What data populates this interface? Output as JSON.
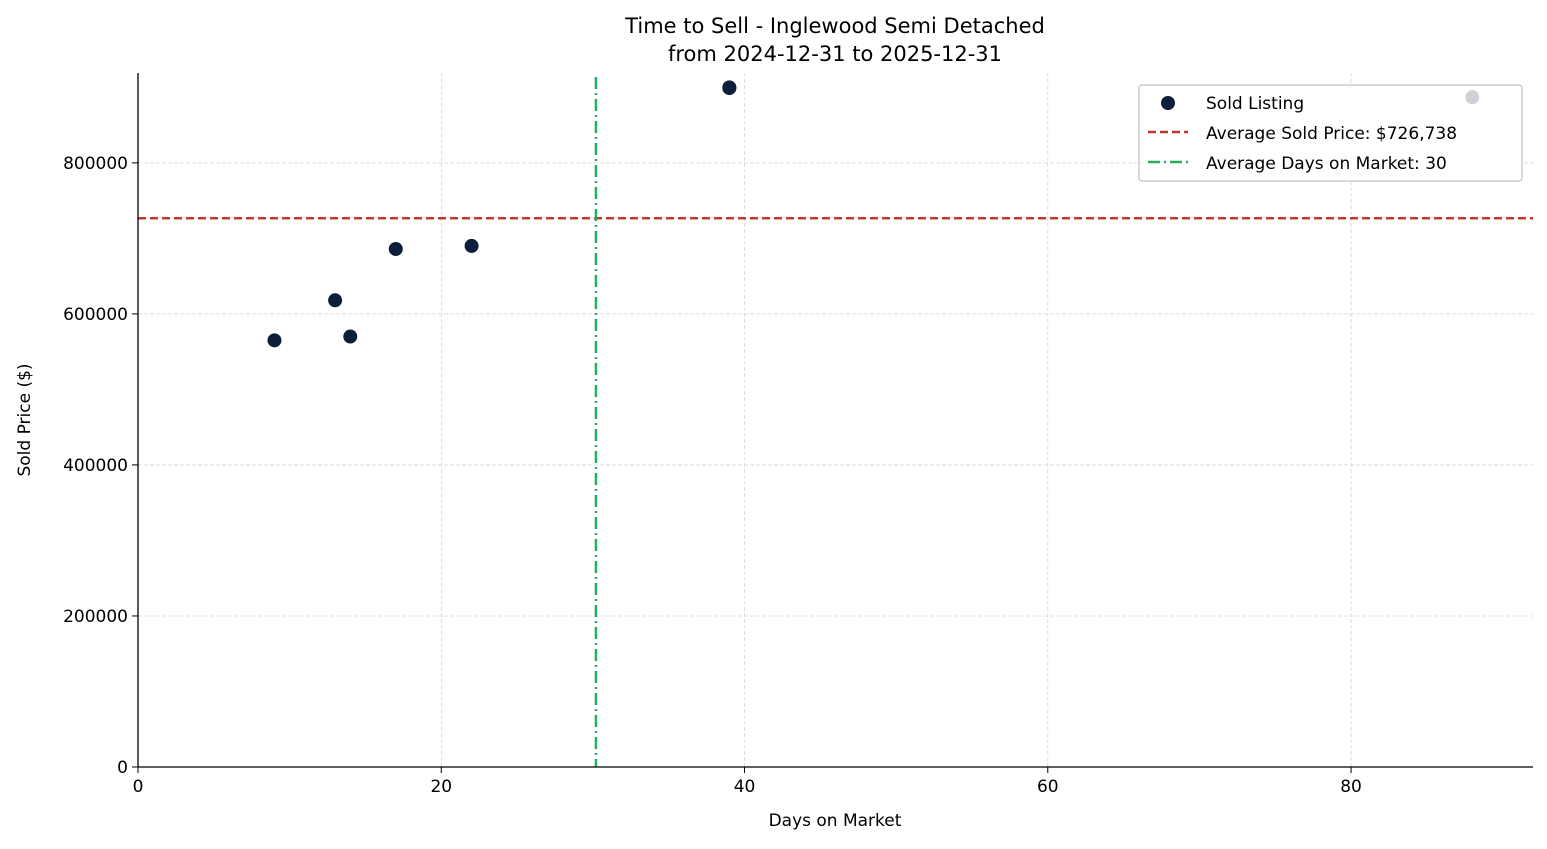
{
  "chart_data": {
    "type": "scatter",
    "title": "Time to Sell - Inglewood Semi Detached",
    "subtitle": "from 2024-12-31 to 2025-12-31",
    "xlabel": "Days on Market",
    "ylabel": "Sold Price ($)",
    "xlim": [
      0,
      92
    ],
    "ylim": [
      0,
      919000
    ],
    "xticks": [
      0,
      20,
      40,
      60,
      80
    ],
    "yticks": [
      0,
      200000,
      400000,
      600000,
      800000
    ],
    "grid": true,
    "legend_position": "top-right",
    "series": [
      {
        "name": "Sold Listing",
        "color": "#0b1f3a",
        "points": [
          {
            "x": 9,
            "y": 565000
          },
          {
            "x": 13,
            "y": 618000
          },
          {
            "x": 14,
            "y": 570000
          },
          {
            "x": 17,
            "y": 686000
          },
          {
            "x": 22,
            "y": 690000
          },
          {
            "x": 39,
            "y": 900000
          },
          {
            "x": 39,
            "y": 899000
          },
          {
            "x": 88,
            "y": 887000
          }
        ]
      }
    ],
    "reference_lines": [
      {
        "name": "Average Sold Price: $726,738",
        "orientation": "horizontal",
        "value": 726738,
        "color": "#c0392b",
        "style": "dashed"
      },
      {
        "name": "Average Days on Market: 30",
        "orientation": "vertical",
        "value": 30.2,
        "color": "#27ae60",
        "style": "dashdot"
      }
    ]
  }
}
